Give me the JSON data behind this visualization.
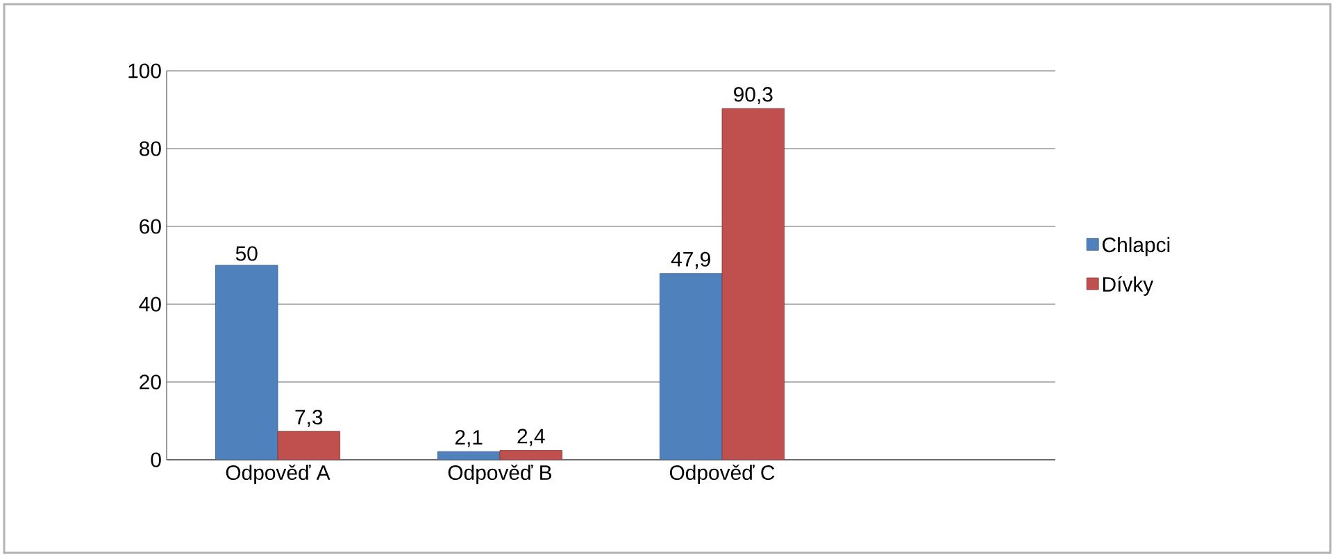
{
  "chart_data": {
    "type": "bar",
    "categories": [
      "Odpověď A",
      "Odpověď B",
      "Odpověď C",
      null
    ],
    "series": [
      {
        "name": "Chlapci",
        "color": "#4f81bd",
        "values": [
          50,
          2.1,
          47.9,
          null
        ],
        "value_labels": [
          "50",
          "2,1",
          "47,9",
          null
        ]
      },
      {
        "name": "Dívky",
        "color": "#c0504d",
        "values": [
          7.3,
          2.4,
          90.3,
          null
        ],
        "value_labels": [
          "7,3",
          "2,4",
          "90,3",
          null
        ]
      }
    ],
    "ylim": [
      0,
      100
    ],
    "yticks": [
      0,
      20,
      40,
      60,
      80,
      100
    ],
    "grid": "y",
    "legend": "right"
  }
}
